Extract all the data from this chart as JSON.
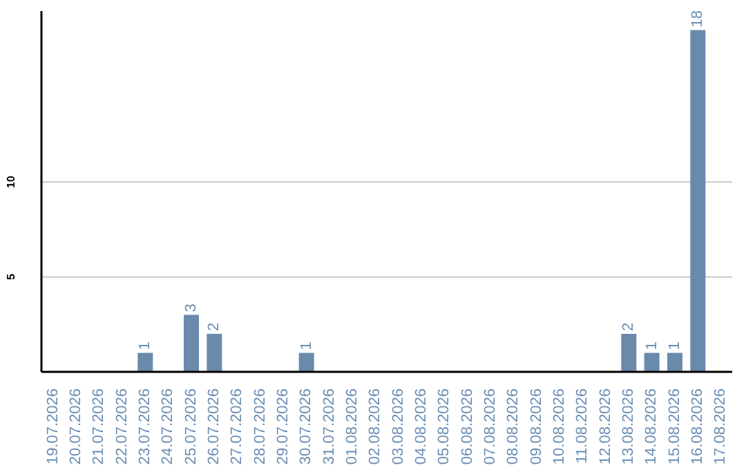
{
  "chart_data": {
    "type": "bar",
    "categories": [
      "19.07.2026",
      "20.07.2026",
      "21.07.2026",
      "22.07.2026",
      "23.07.2026",
      "24.07.2026",
      "25.07.2026",
      "26.07.2026",
      "27.07.2026",
      "28.07.2026",
      "29.07.2026",
      "30.07.2026",
      "31.07.2026",
      "01.08.2026",
      "02.08.2026",
      "03.08.2026",
      "04.08.2026",
      "05.08.2026",
      "06.08.2026",
      "07.08.2026",
      "08.08.2026",
      "09.08.2026",
      "10.08.2026",
      "11.08.2026",
      "12.08.2026",
      "13.08.2026",
      "14.08.2026",
      "15.08.2026",
      "16.08.2026",
      "17.08.2026"
    ],
    "values": [
      0,
      0,
      0,
      0,
      1,
      0,
      3,
      2,
      0,
      0,
      0,
      1,
      0,
      0,
      0,
      0,
      0,
      0,
      0,
      0,
      0,
      0,
      0,
      0,
      0,
      2,
      1,
      1,
      18,
      0
    ],
    "value_labels": [
      null,
      null,
      null,
      null,
      "1",
      null,
      "3",
      "2",
      null,
      null,
      null,
      "1",
      null,
      null,
      null,
      null,
      null,
      null,
      null,
      null,
      null,
      null,
      null,
      null,
      null,
      "2",
      "1",
      "1",
      "18",
      null
    ],
    "color": "#6a8aab",
    "ylim": [
      0,
      19
    ],
    "yticks": [
      5,
      10
    ],
    "grid": "y"
  }
}
